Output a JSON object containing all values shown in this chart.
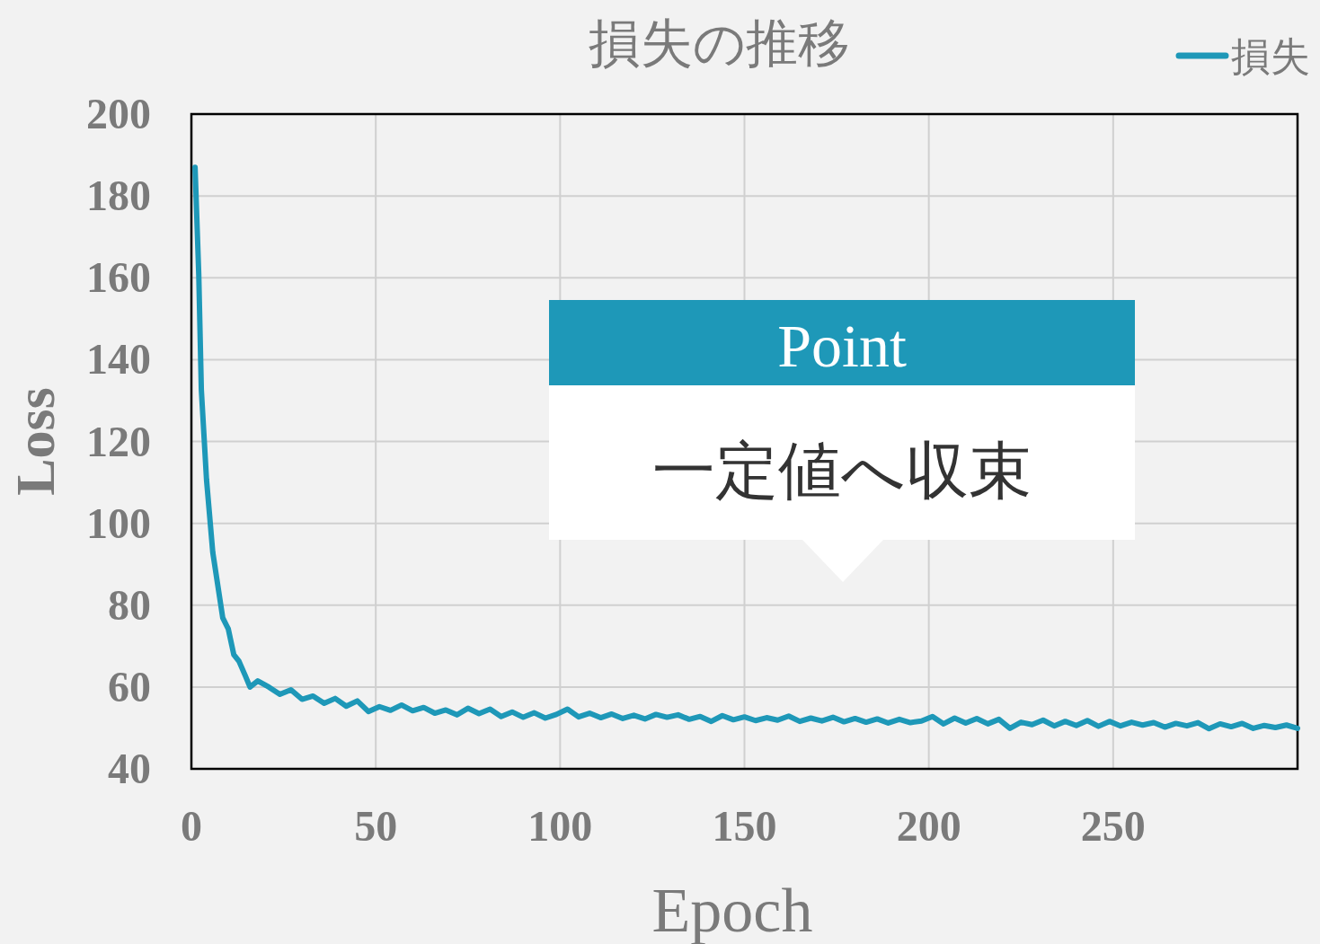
{
  "chart_data": {
    "type": "line",
    "title": "損失の推移",
    "xlabel": "Epoch",
    "ylabel": "Loss",
    "xlim": [
      0,
      300
    ],
    "xticks": [
      0,
      50,
      100,
      150,
      200,
      250
    ],
    "ylim": [
      40,
      200
    ],
    "yticks": [
      40,
      60,
      80,
      100,
      120,
      140,
      160,
      180,
      200
    ],
    "grid": true,
    "legend": "top right",
    "line_style": "solid",
    "marker": "none",
    "annotations": [
      "Point",
      "一定値へ収束"
    ],
    "series": [
      {
        "name": "損失",
        "color": "#1e98b8",
        "x": [
          1,
          2,
          2.7,
          4.1,
          5.8,
          8.5,
          10,
          11.5,
          12.9,
          14.6,
          15.9,
          18,
          21,
          24,
          27,
          30,
          33,
          36,
          39,
          42,
          45,
          48,
          51,
          54,
          57,
          60,
          63,
          66,
          69,
          72,
          75,
          78,
          81,
          84,
          87,
          90,
          93,
          96,
          99,
          102,
          105,
          108,
          111,
          114,
          117,
          120,
          123,
          126,
          129,
          132,
          135,
          138,
          141,
          144,
          147,
          150,
          153,
          156,
          159,
          162,
          165,
          168,
          171,
          174,
          177,
          180,
          183,
          186,
          189,
          192,
          195,
          198,
          201,
          204,
          207,
          210,
          213,
          216,
          219,
          222,
          225,
          228,
          231,
          234,
          237,
          240,
          243,
          246,
          249,
          252,
          255,
          258,
          261,
          264,
          267,
          270,
          273,
          276,
          279,
          282,
          285,
          288,
          291,
          294,
          297,
          300
        ],
        "values": [
          187,
          160.7,
          132.6,
          110.7,
          92.9,
          76.9,
          74.2,
          67.9,
          66.3,
          62.8,
          60,
          61.5,
          60,
          58.2,
          59.3,
          57,
          57.8,
          56,
          57.2,
          55.3,
          56.6,
          54,
          55.2,
          54.3,
          55.6,
          54.2,
          55,
          53.6,
          54.4,
          53.2,
          54.8,
          53.5,
          54.6,
          52.8,
          53.9,
          52.6,
          53.7,
          52.4,
          53.3,
          54.6,
          52.7,
          53.6,
          52.5,
          53.4,
          52.3,
          53.1,
          52.2,
          53.3,
          52.6,
          53.2,
          52.1,
          52.8,
          51.6,
          53,
          52,
          52.7,
          51.8,
          52.5,
          51.9,
          52.9,
          51.6,
          52.4,
          51.7,
          52.6,
          51.5,
          52.3,
          51.4,
          52.2,
          51.2,
          52.1,
          51.3,
          51.7,
          52.8,
          51,
          52.4,
          51.2,
          52.3,
          51,
          52.1,
          49.9,
          51.4,
          50.8,
          51.9,
          50.5,
          51.6,
          50.6,
          51.8,
          50.4,
          51.6,
          50.5,
          51.4,
          50.7,
          51.3,
          50.2,
          51.1,
          50.5,
          51.3,
          49.8,
          51,
          50.3,
          51.1,
          49.9,
          50.6,
          50.1,
          50.7,
          49.9
        ]
      }
    ]
  }
}
